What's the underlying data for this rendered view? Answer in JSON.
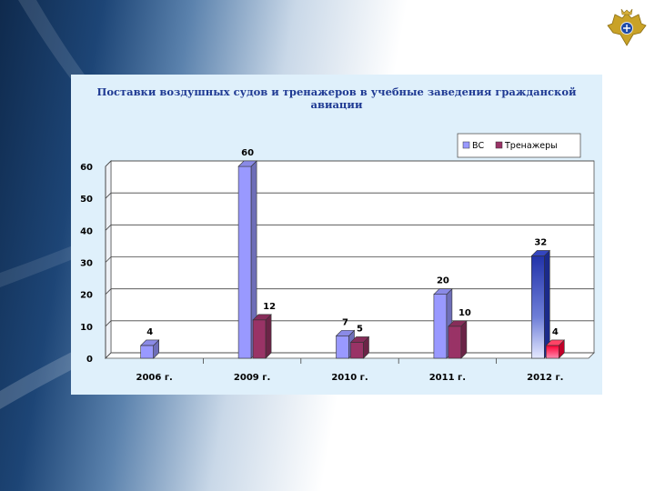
{
  "chart_data": {
    "type": "bar",
    "title": "Поставки воздушных судов и тренажеров в учебные заведения гражданской авиации",
    "categories": [
      "2006 г.",
      "2009 г.",
      "2010 г.",
      "2011 г.",
      "2012 г."
    ],
    "series": [
      {
        "name": "ВС",
        "values": [
          4,
          60,
          7,
          20,
          32
        ]
      },
      {
        "name": "Тренажеры",
        "values": [
          null,
          12,
          5,
          10,
          4
        ]
      }
    ],
    "ylim": [
      0,
      60
    ],
    "yticks": [
      0,
      10,
      20,
      30,
      40,
      50,
      60
    ],
    "grid": true,
    "legend": "top-right",
    "colors": {
      "vs": "#9999ff",
      "trenazhery": "#993366",
      "vs_2012": "#2c3fb8",
      "trenazhery_2012": "#ff1a4d"
    }
  }
}
